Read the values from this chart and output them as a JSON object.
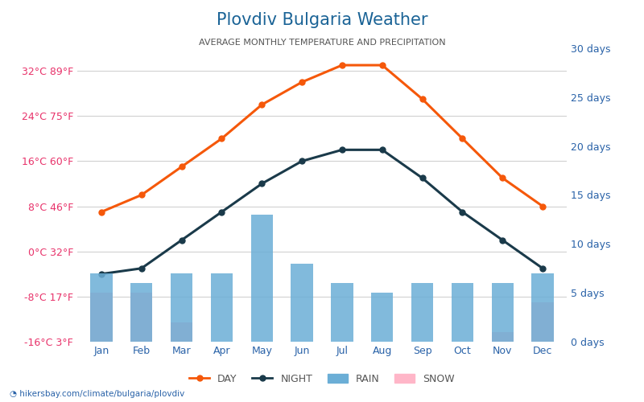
{
  "title": "Plovdiv Bulgaria Weather",
  "subtitle": "AVERAGE MONTHLY TEMPERATURE AND PRECIPITATION",
  "months": [
    "Jan",
    "Feb",
    "Mar",
    "Apr",
    "May",
    "Jun",
    "Jul",
    "Aug",
    "Sep",
    "Oct",
    "Nov",
    "Dec"
  ],
  "day_temp": [
    7,
    10,
    15,
    20,
    26,
    30,
    33,
    33,
    27,
    20,
    13,
    8
  ],
  "night_temp": [
    -4,
    -3,
    2,
    7,
    12,
    16,
    18,
    18,
    13,
    7,
    2,
    -3
  ],
  "rain_days": [
    7,
    6,
    7,
    7,
    13,
    8,
    6,
    5,
    6,
    6,
    6,
    7
  ],
  "snow_days": [
    5,
    5,
    2,
    0,
    0,
    0,
    0,
    0,
    0,
    0,
    1,
    4
  ],
  "temp_ylim": [
    -16,
    36
  ],
  "temp_yticks": [
    -16,
    -8,
    0,
    8,
    16,
    24,
    32
  ],
  "temp_ytick_labels_left": [
    "-16°C 3°F",
    "-8°C 17°F",
    "0°C 32°F",
    "8°C 46°F",
    "16°C 60°F",
    "24°C 75°F",
    "32°C 89°F"
  ],
  "precip_ylim": [
    0,
    30
  ],
  "precip_yticks": [
    0,
    5,
    10,
    15,
    20,
    25,
    30
  ],
  "precip_ytick_labels": [
    "0 days",
    "5 days",
    "10 days",
    "15 days",
    "20 days",
    "25 days",
    "30 days"
  ],
  "day_color": "#f5580a",
  "night_color": "#1a3a4a",
  "rain_color": "#6baed6",
  "snow_color": "#ffb6c8",
  "title_color": "#1a6396",
  "subtitle_color": "#555555",
  "left_tick_color": "#e8326a",
  "right_tick_color": "#2962a8",
  "ylabel_color": "#777777",
  "footer_text": "hikersbay.com/climate/bulgaria/plovdiv",
  "bar_width": 0.55,
  "background_color": "#ffffff"
}
